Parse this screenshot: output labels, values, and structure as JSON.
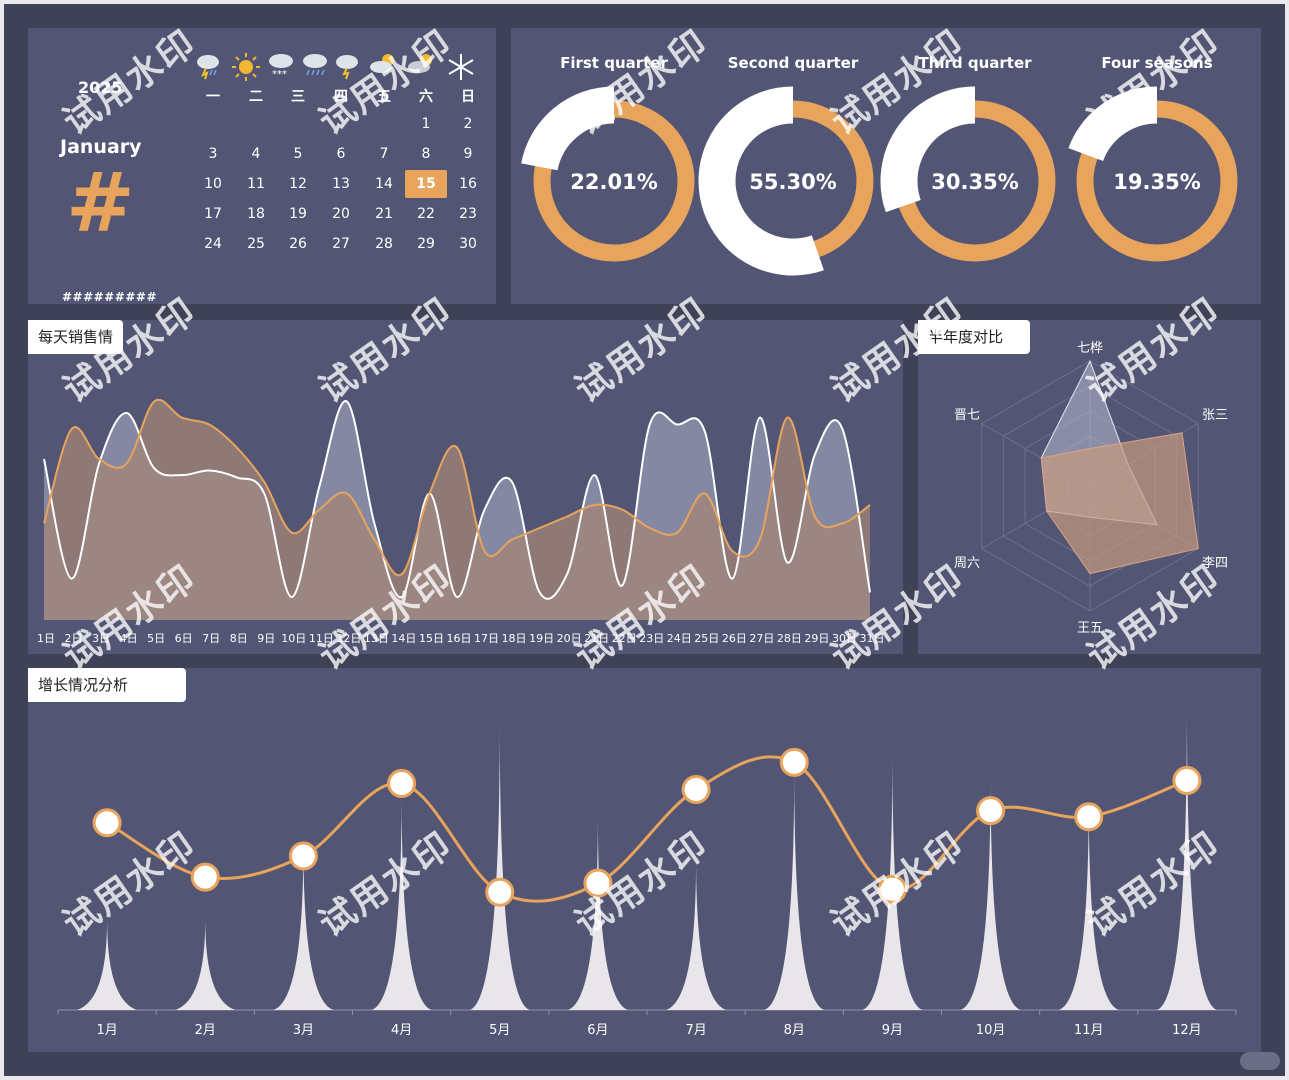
{
  "colors": {
    "accent": "#e8a45c",
    "panel": "#525674",
    "background": "#3f4256",
    "white": "#ffffff"
  },
  "calendar": {
    "year": "2025",
    "month": "January",
    "big_symbol": "#",
    "footer": "#########",
    "weather_icons": [
      "thunderstorm-rain-icon",
      "sun-icon",
      "snow-cloud-icon",
      "rain-cloud-icon",
      "thunder-sun-cloud-icon",
      "partly-cloudy-icon",
      "partly-cloudy-night-icon",
      "snowflake-icon"
    ],
    "weekdays": [
      "一",
      "二",
      "三",
      "四",
      "五",
      "六",
      "日"
    ],
    "weeks": [
      [
        "",
        "",
        "",
        "",
        "",
        "1",
        "2"
      ],
      [
        "3",
        "4",
        "5",
        "6",
        "7",
        "8",
        "9"
      ],
      [
        "10",
        "11",
        "12",
        "13",
        "14",
        "15",
        "16"
      ],
      [
        "17",
        "18",
        "19",
        "20",
        "21",
        "22",
        "23"
      ],
      [
        "24",
        "25",
        "26",
        "27",
        "28",
        "29",
        "30"
      ]
    ],
    "today": "15"
  },
  "quarters": [
    {
      "title": "First quarter",
      "percent": 22.01,
      "label": "22.01%"
    },
    {
      "title": "Second quarter",
      "percent": 55.3,
      "label": "55.30%"
    },
    {
      "title": "Third quarter",
      "percent": 30.35,
      "label": "30.35%"
    },
    {
      "title": "Four seasons",
      "percent": 19.35,
      "label": "19.35%"
    }
  ],
  "daily": {
    "tag": "每天销售情",
    "x_labels": [
      "1日",
      "2日",
      "3日",
      "4日",
      "5日",
      "6日",
      "7日",
      "8日",
      "9日",
      "10日",
      "11日",
      "12日",
      "13日",
      "14日",
      "15日",
      "16日",
      "17日",
      "18日",
      "19日",
      "20日",
      "21日",
      "22日",
      "23日",
      "24日",
      "25日",
      "26日",
      "27日",
      "28日",
      "29日",
      "30日",
      "31日"
    ]
  },
  "radar": {
    "tag": "半年度对比",
    "axes": [
      "七桦",
      "张三",
      "李四",
      "王五",
      "周六",
      "晋七"
    ]
  },
  "growth": {
    "tag": "增长情况分析",
    "months": [
      "1月",
      "2月",
      "3月",
      "4月",
      "5月",
      "6月",
      "7月",
      "8月",
      "9月",
      "10月",
      "11月",
      "12月"
    ]
  },
  "watermark_text": "试用水印",
  "chart_data": [
    {
      "type": "area",
      "categories": [
        "1日",
        "2日",
        "3日",
        "4日",
        "5日",
        "6日",
        "7日",
        "8日",
        "9日",
        "10日",
        "11日",
        "12日",
        "13日",
        "14日",
        "15日",
        "16日",
        "17日",
        "18日",
        "19日",
        "20日",
        "21日",
        "22日",
        "23日",
        "24日",
        "25日",
        "26日",
        "27日",
        "28日",
        "29日",
        "30日",
        "31日"
      ],
      "series": [
        {
          "values": [
            70,
            18,
            68,
            90,
            66,
            63,
            65,
            62,
            55,
            10,
            58,
            95,
            42,
            10,
            55,
            10,
            48,
            60,
            12,
            20,
            63,
            15,
            85,
            85,
            82,
            18,
            88,
            25,
            72,
            83,
            12
          ]
        },
        {
          "values": [
            42,
            83,
            70,
            68,
            95,
            88,
            85,
            75,
            60,
            38,
            48,
            55,
            35,
            20,
            55,
            75,
            30,
            35,
            40,
            45,
            50,
            48,
            40,
            38,
            55,
            30,
            35,
            88,
            45,
            42,
            50
          ]
        }
      ]
    },
    {
      "type": "radar",
      "categories": [
        "七桦",
        "张三",
        "李四",
        "王五",
        "周六",
        "晋七"
      ],
      "series": [
        {
          "values": [
            100,
            35,
            62,
            25,
            40,
            45
          ]
        },
        {
          "values": [
            30,
            85,
            100,
            70,
            40,
            45
          ]
        }
      ]
    },
    {
      "type": "line",
      "categories": [
        "1月",
        "2月",
        "3月",
        "4月",
        "5月",
        "6月",
        "7月",
        "8月",
        "9月",
        "10月",
        "11月",
        "12月"
      ],
      "series": [
        {
          "type": "line",
          "values": [
            62,
            44,
            51,
            75,
            39,
            42,
            73,
            82,
            40,
            66,
            64,
            76
          ]
        },
        {
          "type": "bar",
          "values": [
            30,
            30,
            55,
            72,
            95,
            65,
            50,
            80,
            85,
            78,
            70,
            100
          ]
        }
      ],
      "ylim": [
        0,
        100
      ]
    }
  ]
}
